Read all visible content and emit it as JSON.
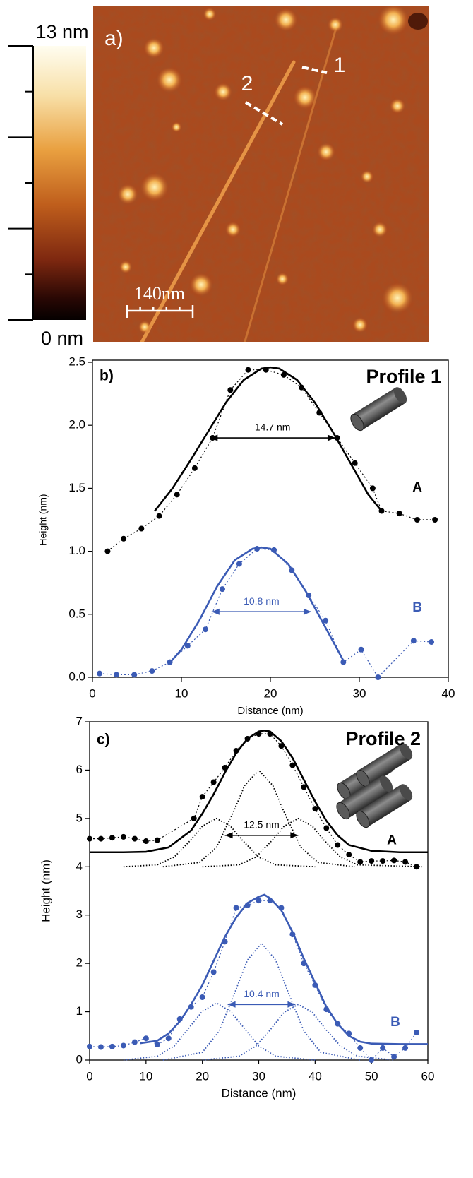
{
  "chart_data": [
    {
      "type": "afm-image",
      "label": "a)",
      "clim": [
        0,
        13
      ],
      "cticks": [
        {
          "value": 13,
          "label": "13 nm"
        },
        {
          "value": 0,
          "label": "0 nm"
        }
      ],
      "scale_bar": "140nm",
      "annotations": [
        "1",
        "2"
      ]
    },
    {
      "type": "line",
      "label": "b)",
      "title": "Profile 1",
      "xlabel": "Distance (nm)",
      "ylabel": "Height (nm)",
      "xlim": [
        0,
        40
      ],
      "xticks": [
        0,
        10,
        20,
        30,
        40
      ],
      "ylim": [
        0,
        2.5
      ],
      "yticks": [
        {
          "value": 0,
          "label": "0.0"
        },
        0.5,
        {
          "value": 1,
          "label": "1.0"
        },
        1.5,
        {
          "value": 2,
          "label": "2.0"
        },
        2.5
      ],
      "series": [
        {
          "name": "A",
          "color": "#000000",
          "style": "points",
          "x": [
            1.7,
            3.5,
            5.5,
            7.5,
            9.5,
            11.5,
            13.5,
            15.5,
            17.5,
            19.5,
            21.5,
            23.5,
            25.5,
            27.5,
            29.5,
            31.5,
            32.5,
            34.5,
            36.5,
            38.5
          ],
          "values": [
            1.0,
            1.1,
            1.18,
            1.28,
            1.45,
            1.66,
            1.9,
            2.28,
            2.44,
            2.44,
            2.4,
            2.3,
            2.1,
            1.9,
            1.7,
            1.5,
            1.32,
            1.3,
            1.25,
            1.25
          ]
        },
        {
          "color": "#000000",
          "style": "solid",
          "x": [
            7,
            9,
            11,
            13,
            15,
            17,
            19,
            20,
            21,
            23,
            25,
            27,
            29,
            31,
            32.5
          ],
          "values": [
            1.32,
            1.5,
            1.72,
            1.95,
            2.18,
            2.36,
            2.45,
            2.46,
            2.45,
            2.36,
            2.18,
            1.95,
            1.7,
            1.45,
            1.32
          ]
        },
        {
          "name": "B",
          "color": "#3b5bb5",
          "style": "points",
          "x": [
            0.8,
            2.7,
            4.7,
            6.7,
            8.7,
            10.7,
            12.7,
            14.6,
            16.5,
            18.5,
            20.4,
            22.4,
            24.3,
            26.2,
            28.2,
            30.2,
            32.1,
            36.1,
            38.1
          ],
          "values": [
            0.03,
            0.02,
            0.02,
            0.05,
            0.12,
            0.25,
            0.38,
            0.7,
            0.9,
            1.02,
            1.01,
            0.85,
            0.65,
            0.45,
            0.12,
            0.22,
            0.0,
            0.29,
            0.28
          ]
        },
        {
          "color": "#3b5bb5",
          "style": "solid",
          "x": [
            8.5,
            10,
            12,
            14,
            16,
            18,
            19,
            20,
            22,
            24,
            26,
            28.3
          ],
          "values": [
            0.1,
            0.22,
            0.45,
            0.72,
            0.93,
            1.02,
            1.03,
            1.02,
            0.9,
            0.68,
            0.42,
            0.12
          ]
        }
      ],
      "annotations": [
        {
          "text": "14.7 nm",
          "x": [
            13.2,
            27.3
          ],
          "y": 1.9,
          "color": "#000000"
        },
        {
          "text": "10.8 nm",
          "x": [
            13.4,
            24.6
          ],
          "y": 0.52,
          "color": "#3b5bb5"
        }
      ]
    },
    {
      "type": "line",
      "label": "c)",
      "title": "Profile 2",
      "xlabel": "Distance (nm)",
      "ylabel": "Height (nm)",
      "xlim": [
        0,
        60
      ],
      "xticks": [
        0,
        10,
        20,
        30,
        40,
        50,
        60
      ],
      "ylim": [
        0,
        7
      ],
      "yticks": [
        0,
        1,
        2,
        3,
        4,
        5,
        6,
        7
      ],
      "series": [
        {
          "name": "A",
          "color": "#000000",
          "style": "points",
          "x": [
            0,
            2,
            4,
            6,
            8,
            10,
            12,
            18.5,
            20,
            22,
            24,
            26,
            28,
            30,
            32,
            34,
            36,
            38,
            40,
            42,
            44,
            46,
            48,
            50,
            52,
            54,
            56,
            58
          ],
          "values": [
            4.58,
            4.58,
            4.6,
            4.62,
            4.58,
            4.53,
            4.55,
            5.0,
            5.45,
            5.75,
            6.05,
            6.4,
            6.65,
            6.75,
            6.75,
            6.5,
            6.1,
            5.65,
            5.2,
            4.8,
            4.45,
            4.25,
            4.1,
            4.12,
            4.12,
            4.13,
            4.1,
            4.0
          ]
        },
        {
          "color": "#000000",
          "style": "dotted",
          "x": [
            6,
            12,
            15,
            18,
            20,
            22.5,
            25,
            27,
            30,
            33,
            40
          ],
          "values": [
            4.0,
            4.04,
            4.2,
            4.56,
            4.84,
            5.0,
            4.84,
            4.56,
            4.2,
            4.04,
            4.0
          ]
        },
        {
          "color": "#000000",
          "style": "dotted",
          "x": [
            13,
            19.5,
            22.5,
            25.5,
            27.5,
            30,
            32.5,
            34.5,
            37.5,
            40.5,
            47
          ],
          "values": [
            4.0,
            4.09,
            4.4,
            5.13,
            5.68,
            6.0,
            5.68,
            5.13,
            4.4,
            4.09,
            4.0
          ]
        },
        {
          "color": "#000000",
          "style": "dotted",
          "x": [
            20,
            26.5,
            29.5,
            32.5,
            34.5,
            37,
            39.5,
            41.5,
            44.5,
            47.5,
            59
          ],
          "values": [
            4.0,
            4.04,
            4.2,
            4.56,
            4.84,
            5.0,
            4.84,
            4.56,
            4.2,
            4.04,
            4.0
          ]
        },
        {
          "color": "#000000",
          "style": "solid",
          "x": [
            0,
            6,
            10,
            14,
            18,
            20,
            22,
            24,
            26,
            28,
            30,
            31,
            32,
            34,
            36,
            38,
            40,
            42,
            44,
            46,
            50,
            55,
            60
          ],
          "values": [
            4.3,
            4.3,
            4.31,
            4.4,
            4.75,
            5.1,
            5.5,
            5.95,
            6.35,
            6.65,
            6.8,
            6.82,
            6.8,
            6.6,
            6.25,
            5.8,
            5.35,
            4.95,
            4.65,
            4.45,
            4.33,
            4.3,
            4.3
          ]
        },
        {
          "name": "B",
          "color": "#3b5bb5",
          "style": "points",
          "x": [
            0,
            2,
            4,
            6,
            8,
            10,
            12,
            14,
            16,
            18,
            20,
            22,
            24,
            26,
            28,
            30,
            32,
            34,
            36,
            38,
            40,
            42,
            44,
            46,
            48,
            50,
            52,
            54,
            56,
            58
          ],
          "values": [
            0.28,
            0.27,
            0.28,
            0.3,
            0.37,
            0.45,
            0.32,
            0.45,
            0.85,
            1.1,
            1.3,
            1.82,
            2.45,
            3.15,
            3.2,
            3.3,
            3.3,
            3.15,
            2.6,
            2.0,
            1.55,
            1.05,
            0.75,
            0.55,
            0.25,
            0.0,
            0.25,
            0.07,
            0.25,
            0.57
          ]
        },
        {
          "color": "#3b5bb5",
          "style": "dotted",
          "x": [
            6,
            12,
            15,
            18,
            20,
            22.5,
            25,
            27,
            30,
            33,
            40
          ],
          "values": [
            0,
            0.08,
            0.29,
            0.72,
            1.01,
            1.18,
            1.01,
            0.72,
            0.29,
            0.08,
            0
          ]
        },
        {
          "color": "#3b5bb5",
          "style": "dotted",
          "x": [
            13,
            20,
            23,
            26,
            28,
            30.5,
            33,
            35,
            38,
            41,
            48
          ],
          "values": [
            0,
            0.16,
            0.6,
            1.47,
            2.07,
            2.42,
            2.07,
            1.47,
            0.6,
            0.16,
            0
          ]
        },
        {
          "color": "#3b5bb5",
          "style": "dotted",
          "x": [
            20,
            26.5,
            29.5,
            32,
            34.5,
            37,
            39.5,
            42,
            44.5,
            47.5,
            54
          ],
          "values": [
            0,
            0.08,
            0.29,
            0.62,
            0.99,
            1.15,
            0.99,
            0.62,
            0.29,
            0.08,
            0
          ]
        },
        {
          "color": "#3b5bb5",
          "style": "solid",
          "x": [
            9,
            12,
            14,
            16,
            18,
            20,
            22,
            24,
            26,
            28,
            30,
            31,
            32,
            34,
            36,
            38,
            40,
            42,
            44,
            46,
            48,
            50,
            55,
            60
          ],
          "values": [
            0.35,
            0.4,
            0.55,
            0.8,
            1.15,
            1.55,
            2.05,
            2.55,
            2.95,
            3.25,
            3.38,
            3.42,
            3.35,
            3.1,
            2.65,
            2.1,
            1.6,
            1.1,
            0.75,
            0.5,
            0.38,
            0.34,
            0.33,
            0.33
          ]
        }
      ],
      "annotations": [
        {
          "text": "12.5 nm",
          "x": [
            24,
            37
          ],
          "y": 4.65,
          "color": "#000000"
        },
        {
          "text": "10.4 nm",
          "x": [
            24.5,
            36.5
          ],
          "y": 1.15,
          "color": "#3b5bb5"
        }
      ]
    }
  ]
}
